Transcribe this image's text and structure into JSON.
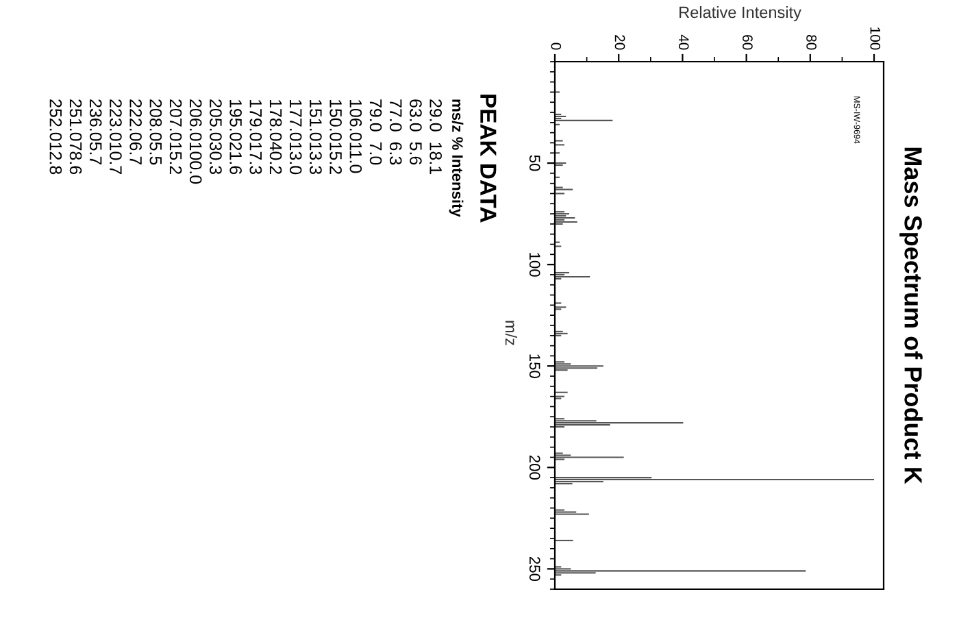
{
  "chart_data": {
    "type": "bar",
    "orientation": "horizontal",
    "title": "Mass Spectrum of Product K",
    "xlabel": "Relative Intensity",
    "ylabel": "m/z",
    "x": [
      15,
      26,
      27,
      28,
      29,
      31,
      39,
      41,
      45,
      50,
      51,
      57,
      62,
      63,
      65,
      74,
      75,
      76,
      77,
      78,
      79,
      80,
      89,
      91,
      104,
      105,
      106,
      107,
      119,
      121,
      122,
      133,
      134,
      135,
      148,
      149,
      150,
      151,
      152,
      163,
      165,
      166,
      176,
      177,
      178,
      179,
      180,
      193,
      194,
      195,
      196,
      205,
      206,
      207,
      208,
      221,
      222,
      223,
      236,
      249,
      250,
      251,
      252,
      253
    ],
    "values": [
      1.5,
      2.0,
      3.5,
      2.0,
      18.1,
      1.5,
      2.5,
      3.0,
      1.5,
      3.5,
      2.5,
      1.5,
      2.5,
      5.6,
      3.0,
      3.0,
      4.5,
      3.5,
      6.3,
      3.0,
      7.0,
      2.5,
      1.5,
      2.0,
      4.5,
      3.0,
      11.0,
      2.0,
      2.0,
      3.5,
      2.0,
      2.5,
      4.0,
      2.0,
      3.0,
      5.0,
      15.2,
      13.3,
      4.0,
      4.0,
      3.0,
      2.0,
      3.0,
      13.0,
      40.2,
      17.3,
      3.0,
      2.5,
      5.0,
      21.6,
      3.0,
      30.3,
      100.0,
      15.2,
      5.5,
      3.0,
      6.7,
      10.7,
      5.7,
      2.0,
      5.0,
      78.6,
      12.8,
      2.0
    ],
    "color": "#555555",
    "xlim": [
      0,
      103
    ],
    "xticks": [
      0,
      20,
      40,
      60,
      80,
      100
    ],
    "ylim": [
      260,
      0
    ],
    "yticks": [
      50,
      100,
      150,
      200,
      250
    ],
    "grid": false,
    "annotations": [
      "MS-IW-9694",
      "PEAK DATA",
      "ms/z % Intensity",
      "29.0  18.1",
      "63.0  5.6",
      "77.0  6.3",
      "79.0  7.0",
      "106.011.0",
      "150.015.2",
      "151.013.3",
      "177.013.0",
      "178.040.2",
      "179.017.3",
      "195.021.6",
      "205.030.3",
      "206.0100.0",
      "207.015.2",
      "208.05.5",
      "222.06.7",
      "223.010.7",
      "236.05.7",
      "251.078.6",
      "252.012.8"
    ]
  }
}
